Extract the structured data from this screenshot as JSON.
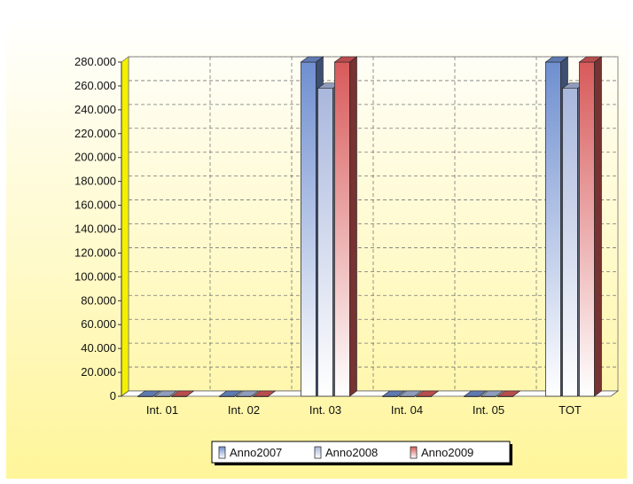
{
  "chart_data": {
    "type": "bar",
    "three_d": true,
    "categories": [
      "Int. 01",
      "Int. 02",
      "Int. 03",
      "Int. 04",
      "Int. 05",
      "TOT"
    ],
    "series": [
      {
        "name": "Anno2007",
        "color": "#6f8fd0",
        "values": [
          0,
          0,
          280000,
          0,
          0,
          280000
        ]
      },
      {
        "name": "Anno2008",
        "color": "#a9b7dd",
        "values": [
          0,
          0,
          258000,
          0,
          0,
          258000
        ]
      },
      {
        "name": "Anno2009",
        "color": "#d85a5a",
        "values": [
          0,
          0,
          280000,
          0,
          0,
          280000
        ]
      }
    ],
    "ylim": [
      0,
      280000
    ],
    "yticks": [
      {
        "value": 0,
        "label": "0"
      },
      {
        "value": 20000,
        "label": "20.000"
      },
      {
        "value": 40000,
        "label": "40.000"
      },
      {
        "value": 60000,
        "label": "60.000"
      },
      {
        "value": 80000,
        "label": "80.000"
      },
      {
        "value": 100000,
        "label": "100.000"
      },
      {
        "value": 120000,
        "label": "120.000"
      },
      {
        "value": 140000,
        "label": "140.000"
      },
      {
        "value": 160000,
        "label": "160.000"
      },
      {
        "value": 180000,
        "label": "180.000"
      },
      {
        "value": 200000,
        "label": "200.000"
      },
      {
        "value": 220000,
        "label": "220.000"
      },
      {
        "value": 240000,
        "label": "240.000"
      },
      {
        "value": 260000,
        "label": "260.000"
      },
      {
        "value": 280000,
        "label": "280.000"
      }
    ],
    "grid": true,
    "legend_position": "bottom",
    "background_gradient": [
      "#ffffff",
      "#fff59a"
    ]
  }
}
